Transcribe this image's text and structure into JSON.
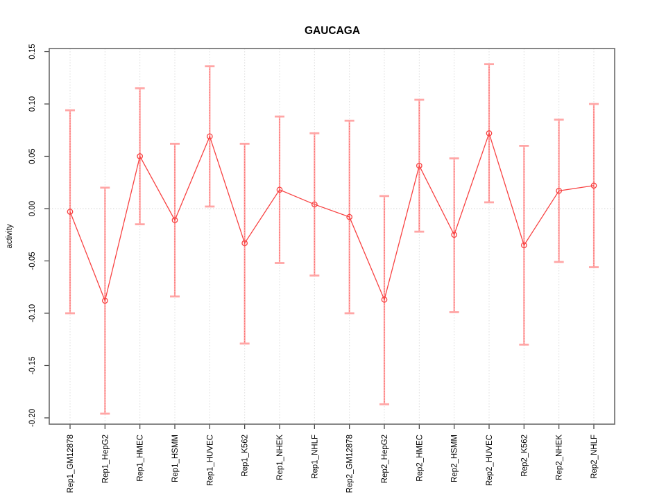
{
  "chart_data": {
    "type": "line",
    "title": "GAUCAGA",
    "xlabel": "",
    "ylabel": "activity",
    "categories": [
      "Rep1_GM12878",
      "Rep1_HepG2",
      "Rep1_HMEC",
      "Rep1_HSMM",
      "Rep1_HUVEC",
      "Rep1_K562",
      "Rep1_NHEK",
      "Rep1_NHLF",
      "Rep2_GM12878",
      "Rep2_HepG2",
      "Rep2_HMEC",
      "Rep2_HSMM",
      "Rep2_HUVEC",
      "Rep2_K562",
      "Rep2_NHEK",
      "Rep2_NHLF"
    ],
    "series": [
      {
        "name": "activity",
        "values": [
          -0.003,
          -0.088,
          0.05,
          -0.011,
          0.069,
          -0.033,
          0.018,
          0.004,
          -0.008,
          -0.087,
          0.041,
          -0.025,
          0.072,
          -0.035,
          0.017,
          0.022
        ],
        "error_low": [
          -0.1,
          -0.196,
          -0.015,
          -0.084,
          0.002,
          -0.129,
          -0.052,
          -0.064,
          -0.1,
          -0.187,
          -0.022,
          -0.099,
          0.006,
          -0.13,
          -0.051,
          -0.056
        ],
        "error_high": [
          0.094,
          0.02,
          0.115,
          0.062,
          0.136,
          0.062,
          0.088,
          0.072,
          0.084,
          0.012,
          0.104,
          0.048,
          0.138,
          0.06,
          0.085,
          0.1
        ]
      }
    ],
    "ytick_labels": [
      "0.15",
      "0.10",
      "0.05",
      "0.00",
      "-0.05",
      "-0.10",
      "-0.15",
      "-0.20"
    ],
    "ytick_values": [
      0.15,
      0.1,
      0.05,
      0.0,
      -0.05,
      -0.1,
      -0.15,
      -0.2
    ],
    "ylim": [
      -0.206,
      0.153
    ],
    "grid": {
      "vertical": "dotted line at each category",
      "horizontal": "dotted line at zero only"
    },
    "legend_position": "none",
    "error_bars": true,
    "point_style": "open-circle",
    "x_labels_rotated": true,
    "colors": {
      "series": "#f84242",
      "error_bar": "#ffa6a6",
      "error_bar_dotted": "#f85d5d",
      "grid": "#dcdcdc",
      "zero_line": "#d6d6d6",
      "frame": "#696969",
      "tick": "#3a3a3a",
      "text": "#000000",
      "background": "#ffffff"
    }
  }
}
